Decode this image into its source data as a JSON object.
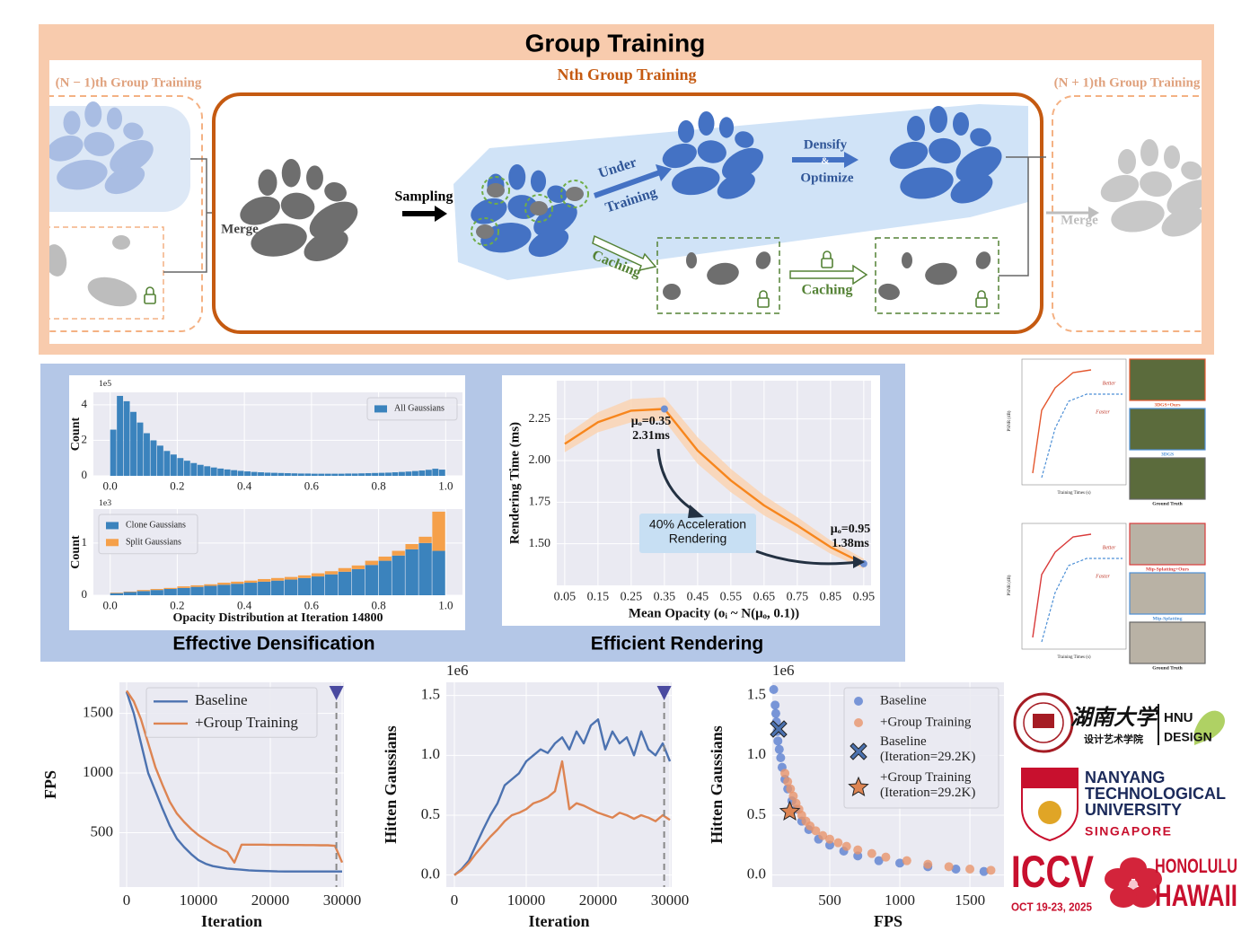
{
  "header": {
    "title": "Group Training"
  },
  "diagram": {
    "prev_group": "(N − 1)th Group Training",
    "current_group": "Nth Group Training",
    "next_group": "(N + 1)th Group Training",
    "merge_in": "Merge",
    "sampling": "Sampling",
    "under": "Under",
    "training": "Training",
    "densify": "Densify",
    "amp": "&",
    "optimize": "Optimize",
    "caching_1": "Caching",
    "caching_2": "Caching",
    "merge_out": "Merge"
  },
  "captions": [
    "Effective Densification",
    "Efficient Rendering"
  ],
  "thumbnails": {
    "top": {
      "y_label": "PSNR (dB)",
      "x_label": "Training Times (s)",
      "better": "Better",
      "faster": "Faster",
      "images": [
        "3DGS+Ours",
        "3DGS",
        "Ground Truth"
      ]
    },
    "bottom": {
      "y_label": "PSNR (dB)",
      "x_label": "Training Times (s)",
      "better": "Better",
      "faster": "Faster",
      "images": [
        "Mip-Splatting+Ours",
        "Mip-Splatting",
        "Ground Truth"
      ]
    }
  },
  "logos": {
    "hnu_cn": "湖南大学",
    "hnu_school": "设计艺术学院",
    "hnu": "HNU",
    "design": "DESIGN",
    "ntu": [
      "NANYANG",
      "TECHNOLOGICAL",
      "UNIVERSITY"
    ],
    "singapore": "SINGAPORE",
    "iccv": "ICCV",
    "dates": "OCT 19-23, 2025",
    "honolulu": "HONOLULU",
    "hawaii": "HAWAII"
  },
  "chart_data": [
    {
      "type": "histogram",
      "y_label": "Count",
      "y_offset_label": "1e5",
      "bins": [
        0,
        0.02,
        0.04,
        0.06,
        0.08,
        0.1,
        0.12,
        0.14,
        0.16,
        0.18,
        0.2,
        0.22,
        0.24,
        0.26,
        0.28,
        0.3,
        0.32,
        0.34,
        0.36,
        0.38,
        0.4,
        0.42,
        0.44,
        0.46,
        0.48,
        0.5,
        0.52,
        0.54,
        0.56,
        0.58,
        0.6,
        0.62,
        0.64,
        0.66,
        0.68,
        0.7,
        0.72,
        0.74,
        0.76,
        0.78,
        0.8,
        0.82,
        0.84,
        0.86,
        0.88,
        0.9,
        0.92,
        0.94,
        0.96,
        0.98,
        1.0
      ],
      "series": [
        {
          "name": "All Gaussians",
          "color": "#3b83bd",
          "values": [
            2.6,
            4.5,
            4.2,
            3.6,
            3.0,
            2.4,
            2.0,
            1.7,
            1.4,
            1.2,
            1.0,
            0.85,
            0.72,
            0.62,
            0.54,
            0.47,
            0.41,
            0.36,
            0.32,
            0.28,
            0.25,
            0.22,
            0.2,
            0.18,
            0.17,
            0.16,
            0.15,
            0.14,
            0.13,
            0.13,
            0.12,
            0.12,
            0.12,
            0.12,
            0.12,
            0.13,
            0.13,
            0.14,
            0.15,
            0.16,
            0.17,
            0.18,
            0.2,
            0.22,
            0.24,
            0.27,
            0.3,
            0.34,
            0.4,
            0.35
          ]
        }
      ],
      "xlim": [
        -0.05,
        1.05
      ],
      "ylim": [
        0,
        4.7
      ],
      "xticks": [
        {
          "value": 0,
          "label": "0.0"
        },
        0.2,
        0.4,
        0.6,
        0.8,
        {
          "value": 1,
          "label": "1.0"
        }
      ],
      "yticks": [
        0,
        2,
        4
      ],
      "grid": true,
      "legend": "upper right"
    },
    {
      "type": "histogram",
      "stacked": true,
      "x_label": "Opacity Distribution at Iteration 14800",
      "y_label": "Count",
      "y_offset_label": "1e3",
      "bins": [
        0,
        0.04,
        0.08,
        0.12,
        0.16,
        0.2,
        0.24,
        0.28,
        0.32,
        0.36,
        0.4,
        0.44,
        0.48,
        0.52,
        0.56,
        0.6,
        0.64,
        0.68,
        0.72,
        0.76,
        0.8,
        0.84,
        0.88,
        0.92,
        0.96,
        1.0
      ],
      "series": [
        {
          "name": "Clone Gaussians",
          "color": "#3b83bd",
          "values": [
            0.04,
            0.06,
            0.08,
            0.1,
            0.12,
            0.14,
            0.16,
            0.18,
            0.2,
            0.22,
            0.24,
            0.26,
            0.28,
            0.3,
            0.33,
            0.36,
            0.4,
            0.45,
            0.5,
            0.58,
            0.66,
            0.76,
            0.88,
            1.0,
            0.85
          ]
        },
        {
          "name": "Split Gaussians",
          "color": "#f5a04a",
          "values": [
            0.01,
            0.01,
            0.02,
            0.02,
            0.02,
            0.03,
            0.03,
            0.03,
            0.04,
            0.04,
            0.04,
            0.05,
            0.05,
            0.05,
            0.05,
            0.06,
            0.06,
            0.07,
            0.07,
            0.08,
            0.08,
            0.09,
            0.1,
            0.12,
            0.75
          ]
        }
      ],
      "xlim": [
        -0.05,
        1.05
      ],
      "ylim": [
        0,
        1.65
      ],
      "xticks": [
        {
          "value": 0,
          "label": "0.0"
        },
        0.2,
        0.4,
        0.6,
        0.8,
        {
          "value": 1,
          "label": "1.0"
        }
      ],
      "yticks": [
        0,
        1
      ],
      "grid": true,
      "legend": "upper left"
    },
    {
      "type": "line",
      "x_label": "Mean Opacity (oᵢ ~ N(μₒ, 0.1))",
      "y_label": "Rendering Time (ms)",
      "x": [
        0.05,
        0.15,
        0.25,
        0.35,
        0.45,
        0.55,
        0.65,
        0.75,
        0.85,
        0.95
      ],
      "series": [
        {
          "color": "#f7861d",
          "values": [
            2.1,
            2.23,
            2.3,
            2.31,
            2.06,
            1.88,
            1.73,
            1.61,
            1.48,
            1.38
          ],
          "band_upper": [
            2.15,
            2.29,
            2.37,
            2.38,
            2.14,
            1.95,
            1.79,
            1.66,
            1.52,
            1.41
          ],
          "band_lower": [
            2.05,
            2.17,
            2.23,
            2.24,
            1.98,
            1.81,
            1.67,
            1.56,
            1.44,
            1.35
          ],
          "band_color": "#fbd2ae"
        }
      ],
      "annotations": [
        {
          "lines": [
            "μₒ=0.35",
            "2.31ms"
          ],
          "x": 0.35,
          "y": 2.31
        },
        {
          "lines": [
            "μₒ=0.95",
            "1.38ms"
          ],
          "x": 0.95,
          "y": 1.38
        },
        {
          "lines": [
            "40% Acceleration",
            "Rendering"
          ]
        }
      ],
      "xlim": [
        0.026,
        0.972
      ],
      "ylim": [
        1.25,
        2.48
      ],
      "xticks": [
        0.05,
        0.15,
        0.25,
        0.35,
        0.45,
        0.55,
        0.65,
        0.75,
        0.85,
        0.95
      ],
      "yticks": [
        {
          "value": 1.5,
          "label": "1.50"
        },
        1.75,
        {
          "value": 2,
          "label": "2.00"
        },
        2.25
      ],
      "grid": true
    },
    {
      "type": "line",
      "x_label": "Iteration",
      "y_label": "FPS",
      "x": [
        0,
        1000,
        2000,
        3000,
        4000,
        5000,
        6000,
        7000,
        8000,
        9000,
        10000,
        11000,
        12000,
        13000,
        14000,
        15000,
        16000,
        17000,
        18000,
        19000,
        20000,
        21000,
        22000,
        23000,
        24000,
        25000,
        26000,
        27000,
        28000,
        29000,
        30000
      ],
      "series": [
        {
          "name": "Baseline",
          "color": "#4c72b0",
          "values": [
            1680,
            1500,
            1250,
            1000,
            850,
            700,
            560,
            450,
            380,
            320,
            270,
            240,
            220,
            210,
            200,
            195,
            190,
            185,
            182,
            180,
            178,
            176,
            175,
            175,
            175,
            175,
            175,
            175,
            175,
            175,
            175
          ]
        },
        {
          "name": "+Group Training",
          "color": "#dd8452",
          "values": [
            1690,
            1600,
            1450,
            1250,
            1050,
            900,
            760,
            660,
            590,
            530,
            480,
            440,
            400,
            370,
            340,
            250,
            400,
            400,
            400,
            400,
            398,
            398,
            398,
            397,
            397,
            396,
            396,
            395,
            395,
            390,
            250
          ]
        }
      ],
      "vline": 29200,
      "vline_color": "#4a4aa0",
      "xlim": [
        -1000,
        30250
      ],
      "ylim": [
        45,
        1760
      ],
      "xticks": [
        0,
        10000,
        20000,
        30000
      ],
      "yticks": [
        500,
        1000,
        1500
      ],
      "grid": true,
      "legend": "upper center"
    },
    {
      "type": "line",
      "x_label": "Iteration",
      "y_label": "Hitten Gaussians",
      "y_offset_label": "1e6",
      "x": [
        0,
        1000,
        2000,
        3000,
        4000,
        5000,
        6000,
        7000,
        8000,
        9000,
        10000,
        11000,
        12000,
        13000,
        14000,
        15000,
        16000,
        17000,
        18000,
        19000,
        20000,
        21000,
        22000,
        23000,
        24000,
        25000,
        26000,
        27000,
        28000,
        29000,
        30000
      ],
      "series": [
        {
          "name": "Baseline",
          "color": "#4c72b0",
          "values": [
            0.0,
            0.05,
            0.12,
            0.25,
            0.38,
            0.5,
            0.6,
            0.75,
            0.8,
            0.85,
            0.95,
            1.0,
            1.05,
            1.02,
            1.1,
            1.15,
            1.05,
            1.2,
            1.1,
            1.25,
            1.3,
            1.05,
            1.2,
            1.1,
            1.15,
            1.0,
            1.2,
            1.05,
            1.0,
            1.1,
            0.95
          ]
        },
        {
          "name": "+Group Training",
          "color": "#dd8452",
          "values": [
            0.0,
            0.04,
            0.1,
            0.18,
            0.25,
            0.32,
            0.38,
            0.45,
            0.5,
            0.52,
            0.55,
            0.6,
            0.62,
            0.65,
            0.7,
            0.95,
            0.55,
            0.6,
            0.58,
            0.55,
            0.52,
            0.5,
            0.48,
            0.52,
            0.5,
            0.47,
            0.5,
            0.48,
            0.45,
            0.5,
            0.46
          ]
        }
      ],
      "vline": 29200,
      "vline_color": "#4a4aa0",
      "xlim": [
        -1125,
        30250
      ],
      "ylim": [
        -0.1,
        1.61
      ],
      "xticks": [
        0,
        10000,
        20000,
        30000
      ],
      "yticks": [
        {
          "value": 0,
          "label": "0.0"
        },
        0.5,
        {
          "value": 1,
          "label": "1.0"
        },
        1.5
      ],
      "grid": true
    },
    {
      "type": "scatter",
      "x_label": "FPS",
      "y_label": "Hitten Gaussians",
      "y_offset_label": "1e6",
      "series": [
        {
          "name": "Baseline",
          "color": "#5b7fcf",
          "marker": "circle",
          "x": [
            100,
            110,
            115,
            120,
            125,
            130,
            140,
            150,
            160,
            180,
            200,
            230,
            260,
            300,
            350,
            420,
            500,
            600,
            700,
            850,
            1000,
            1200,
            1400,
            1600
          ],
          "values": [
            1.55,
            1.42,
            1.35,
            1.28,
            1.2,
            1.12,
            1.05,
            0.98,
            0.9,
            0.8,
            0.72,
            0.62,
            0.55,
            0.45,
            0.38,
            0.3,
            0.25,
            0.2,
            0.16,
            0.12,
            0.1,
            0.07,
            0.05,
            0.03
          ]
        },
        {
          "name": "+Group Training",
          "color": "#e8956b",
          "marker": "circle",
          "x": [
            180,
            200,
            220,
            240,
            260,
            280,
            300,
            330,
            360,
            400,
            450,
            500,
            560,
            620,
            700,
            800,
            900,
            1050,
            1200,
            1350,
            1500,
            1650
          ],
          "values": [
            0.85,
            0.78,
            0.72,
            0.66,
            0.6,
            0.55,
            0.5,
            0.45,
            0.41,
            0.37,
            0.33,
            0.3,
            0.27,
            0.24,
            0.21,
            0.18,
            0.15,
            0.12,
            0.09,
            0.07,
            0.05,
            0.04
          ]
        },
        {
          "name": "Baseline (Iteration=29.2K)",
          "color": "#4c72b0",
          "marker": "x",
          "x": [
            135
          ],
          "values": [
            1.22
          ]
        },
        {
          "name": "+Group Training (Iteration=29.2K)",
          "color": "#dd8452",
          "marker": "star",
          "x": [
            215
          ],
          "values": [
            0.53
          ]
        }
      ],
      "xlim": [
        90,
        1743
      ],
      "ylim": [
        -0.1,
        1.61
      ],
      "xticks": [
        500,
        1000,
        1500
      ],
      "yticks": [
        {
          "value": 0,
          "label": "0.0"
        },
        0.5,
        {
          "value": 1,
          "label": "1.0"
        },
        1.5
      ],
      "grid": true,
      "legend": "upper right"
    }
  ]
}
